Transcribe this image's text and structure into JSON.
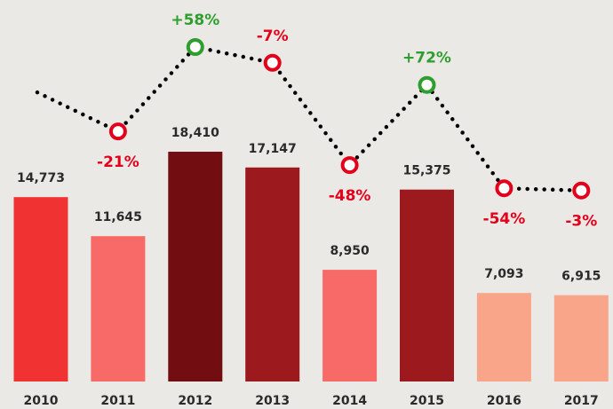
{
  "chart_data": {
    "type": "bar",
    "categories": [
      "2010",
      "2011",
      "2012",
      "2013",
      "2014",
      "2015",
      "2016",
      "2017"
    ],
    "values": [
      14773,
      11645,
      18410,
      17147,
      8950,
      15375,
      7093,
      6915
    ],
    "value_labels": [
      "14,773",
      "11,645",
      "18,410",
      "17,147",
      "8,950",
      "15,375",
      "7,093",
      "6,915"
    ],
    "colors": [
      "#f03232",
      "#f76a67",
      "#720d12",
      "#9c191d",
      "#f76a67",
      "#9c191d",
      "#f9a58a",
      "#f9a58a"
    ],
    "changes": [
      null,
      -21,
      58,
      -7,
      -48,
      72,
      -54,
      -3
    ],
    "change_labels": [
      null,
      "-21%",
      "+58%",
      "-7%",
      "-48%",
      "+72%",
      "-54%",
      "-3%"
    ],
    "positive_color": "#2e9e2e",
    "negative_color": "#e3001b"
  }
}
